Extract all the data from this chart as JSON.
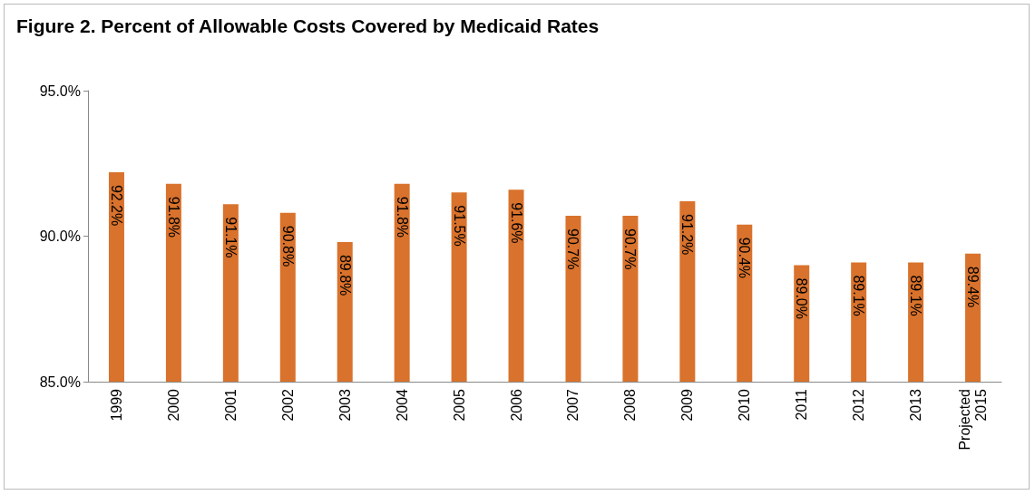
{
  "chart_data": {
    "type": "bar",
    "title": "Figure 2. Percent of Allowable Costs Covered by Medicaid Rates",
    "categories": [
      "1999",
      "2000",
      "2001",
      "2002",
      "2003",
      "2004",
      "2005",
      "2006",
      "2007",
      "2008",
      "2009",
      "2010",
      "2011",
      "2012",
      "2013",
      "Projected 2015"
    ],
    "series": [
      {
        "color": "#d9722c",
        "values": [
          92.2,
          91.8,
          91.1,
          90.8,
          89.8,
          91.8,
          91.5,
          91.6,
          90.7,
          90.7,
          91.2,
          90.4,
          89.0,
          89.1,
          89.1,
          89.4
        ],
        "value_labels": [
          "92.2%",
          "91.8%",
          "91.1%",
          "90.8%",
          "89.8%",
          "91.8%",
          "91.5%",
          "91.6%",
          "90.7%",
          "90.7%",
          "91.2%",
          "90.4%",
          "89.0%",
          "89.1%",
          "89.1%",
          "89.4%"
        ]
      }
    ],
    "ylim": [
      85,
      95
    ],
    "yticks": [
      {
        "value": 85,
        "label": "85.0%"
      },
      {
        "value": 90,
        "label": "90.0%"
      },
      {
        "value": 95,
        "label": "95.0%"
      }
    ],
    "grid": false
  }
}
